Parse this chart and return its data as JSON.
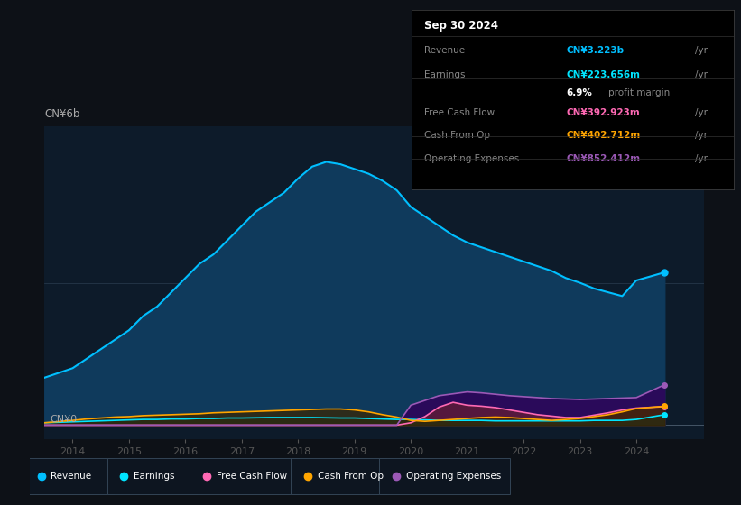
{
  "bg_color": "#0d1117",
  "plot_bg_color": "#0d1b2a",
  "title_box_bg": "#000000",
  "title_text": "Sep 30 2024",
  "info_rows": [
    {
      "label": "Revenue",
      "value": "CN¥3.223b /yr",
      "value_color": "#00bfff"
    },
    {
      "label": "Earnings",
      "value": "CN¥223.656m /yr",
      "value_color": "#00e5ff"
    },
    {
      "label": "",
      "value": "6.9% profit margin",
      "value_color": "#aaaaaa"
    },
    {
      "label": "Free Cash Flow",
      "value": "CN¥392.923m /yr",
      "value_color": "#ff69b4"
    },
    {
      "label": "Cash From Op",
      "value": "CN¥402.712m /yr",
      "value_color": "#ffa500"
    },
    {
      "label": "Operating Expenses",
      "value": "CN¥852.412m /yr",
      "value_color": "#9b59b6"
    }
  ],
  "ylabel_text": "CN¥6b",
  "y0_text": "CN¥0",
  "x_ticks": [
    2014,
    2015,
    2016,
    2017,
    2018,
    2019,
    2020,
    2021,
    2022,
    2023,
    2024
  ],
  "colors": {
    "revenue": "#00bfff",
    "revenue_fill": "#0f3a5c",
    "earnings": "#00e5ff",
    "earnings_fill": "#083a3a",
    "free_cash_flow": "#ff69b4",
    "free_cash_flow_fill": "#5a1a3a",
    "cash_from_op": "#ffa500",
    "cash_from_op_fill": "#3a2500",
    "operating_expenses": "#9b59b6",
    "operating_expenses_fill": "#2a0a5a"
  },
  "legend_items": [
    {
      "label": "Revenue",
      "color": "#00bfff"
    },
    {
      "label": "Earnings",
      "color": "#00e5ff"
    },
    {
      "label": "Free Cash Flow",
      "color": "#ff69b4"
    },
    {
      "label": "Cash From Op",
      "color": "#ffa500"
    },
    {
      "label": "Operating Expenses",
      "color": "#9b59b6"
    }
  ],
  "years": [
    2013.5,
    2014,
    2014.25,
    2014.5,
    2014.75,
    2015,
    2015.25,
    2015.5,
    2015.75,
    2016,
    2016.25,
    2016.5,
    2016.75,
    2017,
    2017.25,
    2017.5,
    2017.75,
    2018,
    2018.25,
    2018.5,
    2018.75,
    2019,
    2019.25,
    2019.5,
    2019.75,
    2020,
    2020.25,
    2020.5,
    2020.75,
    2021,
    2021.25,
    2021.5,
    2021.75,
    2022,
    2022.25,
    2022.5,
    2022.75,
    2023,
    2023.25,
    2023.5,
    2023.75,
    2024,
    2024.5
  ],
  "revenue": [
    1.0,
    1.2,
    1.4,
    1.6,
    1.8,
    2.0,
    2.3,
    2.5,
    2.8,
    3.1,
    3.4,
    3.6,
    3.9,
    4.2,
    4.5,
    4.7,
    4.9,
    5.2,
    5.45,
    5.55,
    5.5,
    5.4,
    5.3,
    5.15,
    4.95,
    4.6,
    4.4,
    4.2,
    4.0,
    3.85,
    3.75,
    3.65,
    3.55,
    3.45,
    3.35,
    3.25,
    3.1,
    3.0,
    2.88,
    2.8,
    2.72,
    3.05,
    3.22
  ],
  "earnings": [
    0.05,
    0.07,
    0.08,
    0.09,
    0.1,
    0.11,
    0.12,
    0.12,
    0.13,
    0.13,
    0.14,
    0.14,
    0.15,
    0.15,
    0.155,
    0.16,
    0.16,
    0.16,
    0.16,
    0.155,
    0.15,
    0.15,
    0.14,
    0.13,
    0.12,
    0.12,
    0.11,
    0.1,
    0.1,
    0.1,
    0.1,
    0.09,
    0.09,
    0.09,
    0.09,
    0.09,
    0.09,
    0.09,
    0.1,
    0.1,
    0.1,
    0.12,
    0.22
  ],
  "free_cash_flow": [
    0.0,
    0.0,
    0.0,
    0.0,
    0.0,
    0.0,
    0.0,
    0.0,
    0.0,
    0.0,
    0.0,
    0.0,
    0.0,
    0.0,
    0.0,
    0.0,
    0.0,
    0.0,
    0.0,
    0.0,
    0.0,
    0.0,
    0.0,
    0.0,
    0.0,
    0.05,
    0.18,
    0.38,
    0.48,
    0.42,
    0.4,
    0.37,
    0.32,
    0.27,
    0.22,
    0.19,
    0.16,
    0.16,
    0.21,
    0.26,
    0.32,
    0.36,
    0.39
  ],
  "cash_from_op": [
    0.05,
    0.1,
    0.13,
    0.15,
    0.17,
    0.18,
    0.2,
    0.21,
    0.22,
    0.23,
    0.24,
    0.26,
    0.27,
    0.28,
    0.29,
    0.3,
    0.31,
    0.32,
    0.33,
    0.34,
    0.34,
    0.32,
    0.28,
    0.22,
    0.17,
    0.1,
    0.08,
    0.1,
    0.12,
    0.14,
    0.16,
    0.17,
    0.16,
    0.14,
    0.12,
    0.1,
    0.12,
    0.14,
    0.18,
    0.22,
    0.28,
    0.35,
    0.4
  ],
  "operating_expenses": [
    0.0,
    0.0,
    0.0,
    0.0,
    0.0,
    0.0,
    0.0,
    0.0,
    0.0,
    0.0,
    0.0,
    0.0,
    0.0,
    0.0,
    0.0,
    0.0,
    0.0,
    0.0,
    0.0,
    0.0,
    0.0,
    0.0,
    0.0,
    0.0,
    0.0,
    0.42,
    0.52,
    0.62,
    0.66,
    0.7,
    0.68,
    0.65,
    0.62,
    0.6,
    0.58,
    0.56,
    0.55,
    0.54,
    0.55,
    0.56,
    0.57,
    0.58,
    0.85
  ]
}
